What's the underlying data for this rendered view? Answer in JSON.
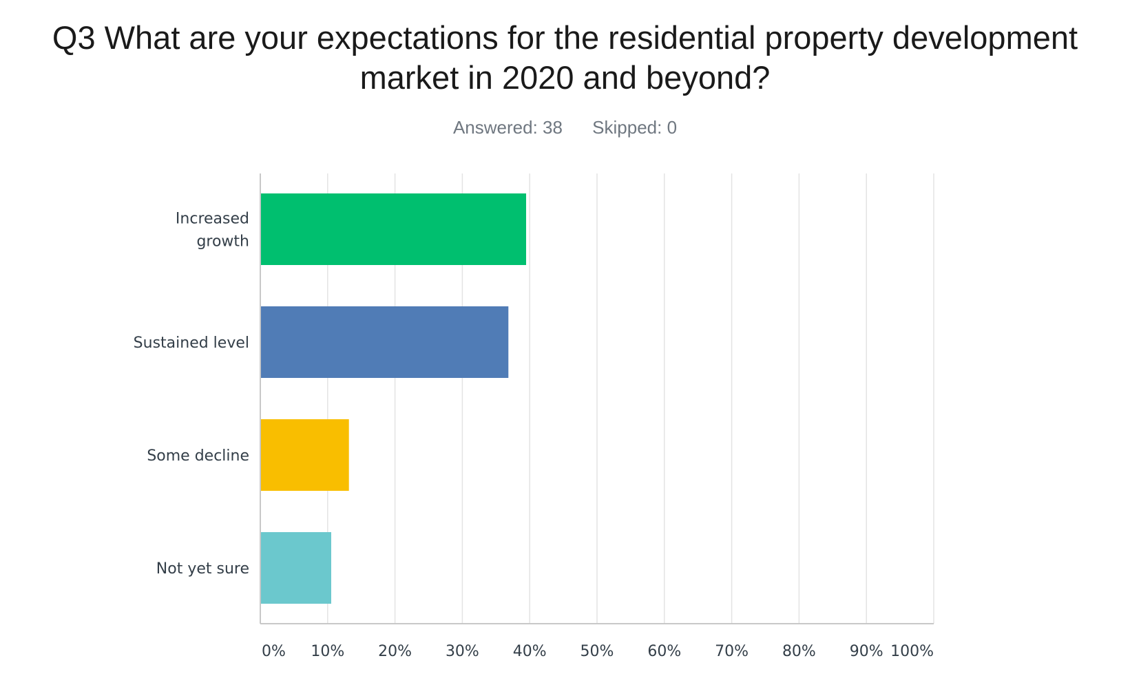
{
  "chart_data": {
    "type": "bar",
    "orientation": "horizontal",
    "title_lines": [
      "Q3 What are your expectations for the residential property development",
      "market in 2020 and beyond?"
    ],
    "answered_label": "Answered: 38",
    "skipped_label": "Skipped: 0",
    "categories": [
      "Increased growth",
      "Sustained level",
      "Some decline",
      "Not yet sure"
    ],
    "category_label_lines": [
      [
        "Increased",
        "growth"
      ],
      [
        "Sustained level"
      ],
      [
        "Some decline"
      ],
      [
        "Not yet sure"
      ]
    ],
    "values": [
      39.47,
      36.84,
      13.16,
      10.53
    ],
    "colors": [
      "#00bf6f",
      "#507cb6",
      "#f9be00",
      "#6bc8cd"
    ],
    "xlim": [
      0,
      100
    ],
    "x_ticks": [
      0,
      10,
      20,
      30,
      40,
      50,
      60,
      70,
      80,
      90,
      100
    ],
    "x_tick_labels": [
      "0%",
      "10%",
      "20%",
      "30%",
      "40%",
      "50%",
      "60%",
      "70%",
      "80%",
      "90%",
      "100%"
    ],
    "grid": true,
    "value_unit": "percent"
  }
}
